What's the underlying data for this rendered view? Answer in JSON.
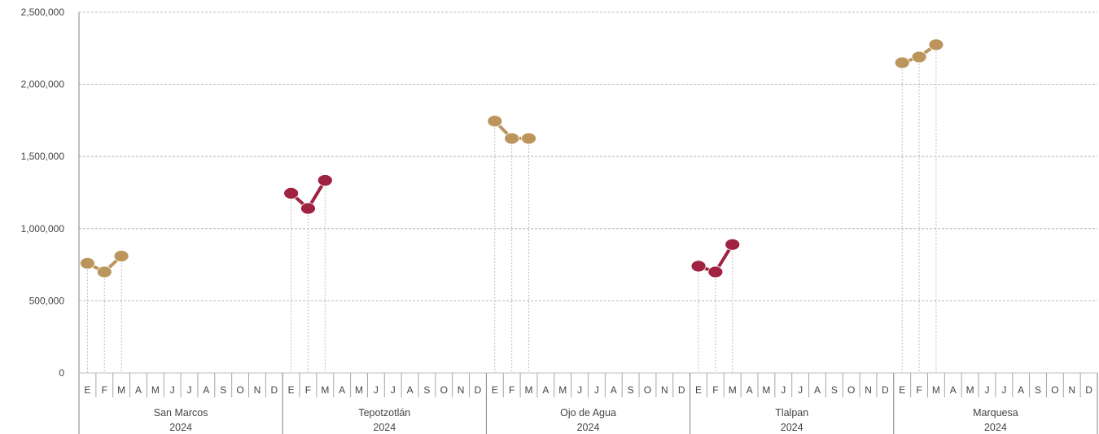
{
  "chart_data": {
    "type": "line",
    "y_ticks": [
      "0",
      "500,000",
      "1,000,000",
      "1,500,000",
      "2,000,000",
      "2,500,000"
    ],
    "ylim": [
      0,
      2500000
    ],
    "grid": "horizontal dashed",
    "months": [
      "E",
      "F",
      "M",
      "A",
      "M",
      "J",
      "J",
      "A",
      "S",
      "O",
      "N",
      "D"
    ],
    "groups": [
      {
        "label": "San Marcos",
        "year": "2024",
        "color": "#BC955C",
        "values": [
          760000,
          700000,
          810000
        ]
      },
      {
        "label": "Tepotzotlán",
        "year": "2024",
        "color": "#9F2241",
        "values": [
          1245000,
          1140000,
          1335000
        ]
      },
      {
        "label": "Ojo de Agua",
        "year": "2024",
        "color": "#BC955C",
        "values": [
          1745000,
          1625000,
          1625000
        ]
      },
      {
        "label": "Tlalpan",
        "year": "2024",
        "color": "#9F2241",
        "values": [
          740000,
          700000,
          890000
        ]
      },
      {
        "label": "Marquesa",
        "year": "2024",
        "color": "#BC955C",
        "values": [
          2150000,
          2190000,
          2275000
        ]
      }
    ]
  }
}
